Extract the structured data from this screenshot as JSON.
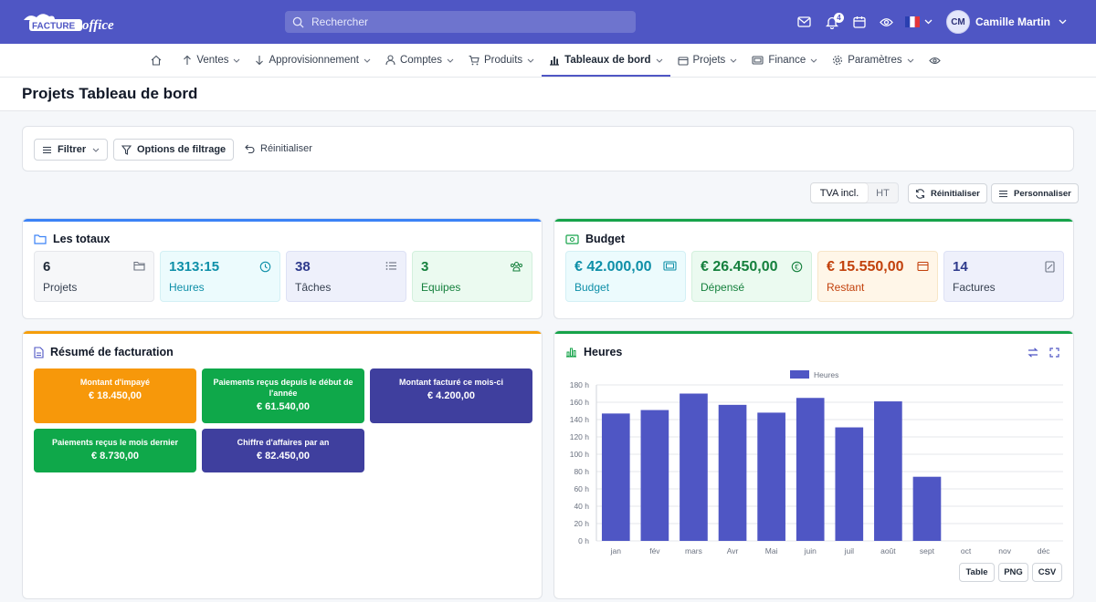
{
  "app": {
    "logo_text": "FACTURE office"
  },
  "search": {
    "placeholder": "Rechercher"
  },
  "topbar": {
    "notification_count": "4",
    "user_initials": "CM",
    "user_name": "Camille Martin"
  },
  "nav": {
    "items": [
      {
        "label": "Ventes"
      },
      {
        "label": "Approvisionnement"
      },
      {
        "label": "Comptes"
      },
      {
        "label": "Produits"
      },
      {
        "label": "Tableaux de bord"
      },
      {
        "label": "Projets"
      },
      {
        "label": "Finance"
      },
      {
        "label": "Paramètres"
      }
    ]
  },
  "page": {
    "title": "Projets Tableau de bord"
  },
  "filters": {
    "filter_label": "Filtrer",
    "options_label": "Options de filtrage",
    "reset_label": "Réinitialiser"
  },
  "toolbar": {
    "tax_on": "TVA incl.",
    "tax_off": "HT",
    "reset_label": "Réinitialiser",
    "customize_label": "Personnaliser"
  },
  "totals": {
    "title": "Les totaux",
    "tiles": [
      {
        "value": "6",
        "label": "Projets"
      },
      {
        "value": "1313:15",
        "label": "Heures"
      },
      {
        "value": "38",
        "label": "Tâches"
      },
      {
        "value": "3",
        "label": "Equipes"
      }
    ]
  },
  "budget": {
    "title": "Budget",
    "tiles": [
      {
        "value": "€ 42.000,00",
        "label": "Budget"
      },
      {
        "value": "€ 26.450,00",
        "label": "Dépensé"
      },
      {
        "value": "€ 15.550,00",
        "label": "Restant"
      },
      {
        "value": "14",
        "label": "Factures"
      }
    ]
  },
  "billing": {
    "title": "Résumé de facturation",
    "items": [
      {
        "label": "Montant d'impayé",
        "value": "€ 18.450,00",
        "color": "#f7980a"
      },
      {
        "label": "Paiements reçus depuis le début de l'année",
        "value": "€ 61.540,00",
        "color": "#0fa84a"
      },
      {
        "label": "Montant facturé ce mois-ci",
        "value": "€ 4.200,00",
        "color": "#3f3f9e"
      },
      {
        "label": "Paiements reçus le mois dernier",
        "value": "€ 8.730,00",
        "color": "#0fa84a"
      },
      {
        "label": "Chiffre d'affaires par an",
        "value": "€ 82.450,00",
        "color": "#3f3f9e"
      }
    ]
  },
  "hours": {
    "title": "Heures",
    "export": {
      "table": "Table",
      "png": "PNG",
      "csv": "CSV"
    }
  },
  "colors": {
    "brand": "#4f56c4",
    "bar": "#4f56c4"
  },
  "chart_data": {
    "type": "bar",
    "title": "",
    "categories": [
      "jan",
      "fév",
      "mars",
      "Avr",
      "Mai",
      "juin",
      "juil",
      "août",
      "sept",
      "oct",
      "nov",
      "déc"
    ],
    "series": [
      {
        "name": "Heures",
        "values": [
          147,
          151,
          170,
          157,
          148,
          165,
          131,
          161,
          74,
          0,
          0,
          0
        ]
      }
    ],
    "yticks": [
      "0 h",
      "20 h",
      "40 h",
      "60 h",
      "80 h",
      "100 h",
      "120 h",
      "140 h",
      "160 h",
      "180 h"
    ],
    "ylim": [
      0,
      180
    ],
    "grid": true,
    "legend": "top-center"
  }
}
